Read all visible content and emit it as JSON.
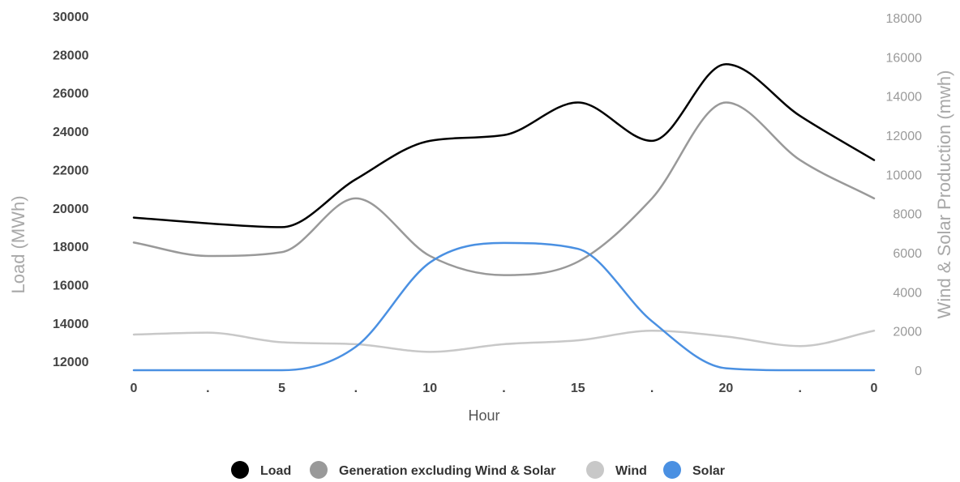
{
  "chart_data": {
    "type": "line",
    "xlabel": "Hour",
    "ylabel_left": "Load (MWh)",
    "ylabel_right": "Wind & Solar Production (mwh)",
    "x_tick_labels": [
      "0",
      ".",
      "5",
      ".",
      "10",
      ".",
      "15",
      ".",
      "20",
      ".",
      "0"
    ],
    "y_left_ticks": [
      12000,
      14000,
      16000,
      18000,
      20000,
      22000,
      24000,
      26000,
      28000,
      30000
    ],
    "y_left_range": [
      11500,
      30000
    ],
    "y_right_ticks": [
      0,
      2000,
      4000,
      6000,
      8000,
      10000,
      12000,
      14000,
      16000,
      18000
    ],
    "y_right_range": [
      0,
      18000
    ],
    "grid": false,
    "legend_position": "bottom",
    "series": [
      {
        "name": "Load",
        "axis": "left",
        "color": "#000000",
        "x": [
          0,
          2.5,
          5,
          7.5,
          10,
          12.5,
          15,
          17.5,
          20,
          22.5,
          25
        ],
        "values": [
          19500,
          19200,
          19000,
          21500,
          23500,
          23800,
          25500,
          23500,
          27500,
          24800,
          22500
        ]
      },
      {
        "name": "Generation excluding Wind & Solar",
        "axis": "left",
        "color": "#999999",
        "x": [
          0,
          2.5,
          5,
          7.5,
          10,
          12.5,
          15,
          17.5,
          20,
          22.5,
          25
        ],
        "values": [
          18200,
          17500,
          17700,
          20500,
          17500,
          16500,
          17200,
          20500,
          25500,
          22500,
          20500
        ]
      },
      {
        "name": "Wind",
        "axis": "left",
        "color": "#c8c8c8",
        "x": [
          0,
          2.5,
          5,
          7.5,
          10,
          12.5,
          15,
          17.5,
          20,
          22.5,
          25
        ],
        "values": [
          13400,
          13500,
          13000,
          12900,
          12500,
          12900,
          13100,
          13600,
          13300,
          12800,
          13600
        ]
      },
      {
        "name": "Solar",
        "axis": "right",
        "color": "#4a90e2",
        "x": [
          0,
          2.5,
          5,
          7.5,
          10,
          12.5,
          15,
          17.5,
          20,
          22.5,
          25
        ],
        "values": [
          0,
          0,
          0,
          1200,
          5500,
          6500,
          6200,
          2500,
          100,
          0,
          0
        ]
      }
    ]
  }
}
